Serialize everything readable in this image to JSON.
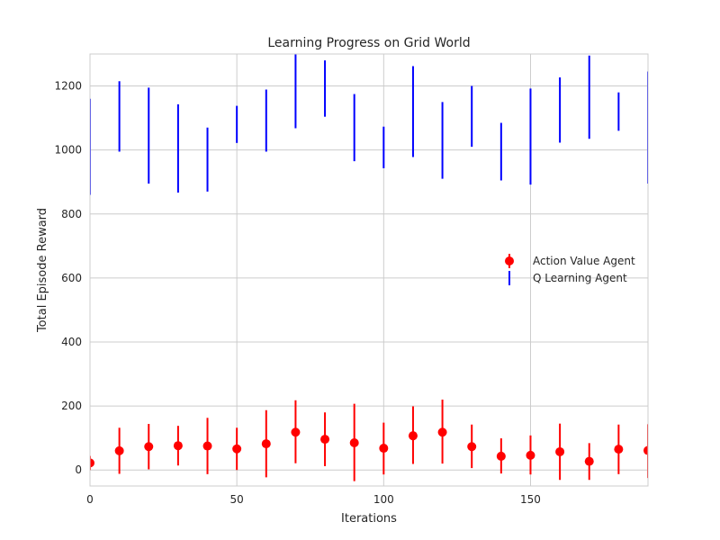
{
  "chart_data": {
    "type": "errorbar",
    "title": "Learning Progress on Grid World",
    "xlabel": "Iterations",
    "ylabel": "Total Episode Reward",
    "xlim": [
      0,
      190
    ],
    "ylim": [
      -50,
      1300
    ],
    "xticks": [
      0,
      50,
      100,
      150
    ],
    "yticks": [
      0,
      200,
      400,
      600,
      800,
      1000,
      1200
    ],
    "grid": true,
    "legend_position": "center-right",
    "series": [
      {
        "name": "Action Value Agent",
        "color": "#ff0000",
        "marker": "circle",
        "x": [
          0,
          10,
          20,
          30,
          40,
          50,
          60,
          70,
          80,
          90,
          100,
          110,
          120,
          130,
          140,
          150,
          160,
          170,
          180,
          190
        ],
        "y": [
          22,
          60,
          73,
          76,
          75,
          66,
          82,
          118,
          96,
          85,
          68,
          107,
          118,
          73,
          43,
          46,
          57,
          27,
          65,
          61
        ],
        "yerr_low": [
          22,
          72,
          71,
          62,
          88,
          66,
          105,
          97,
          84,
          120,
          82,
          88,
          98,
          67,
          54,
          60,
          88,
          58,
          78,
          86
        ],
        "yerr_high": [
          22,
          72,
          71,
          62,
          88,
          66,
          105,
          100,
          84,
          122,
          80,
          92,
          102,
          69,
          56,
          62,
          88,
          57,
          77,
          82
        ]
      },
      {
        "name": "Q Learning Agent",
        "color": "#0000ff",
        "marker": "none",
        "x": [
          0,
          10,
          20,
          30,
          40,
          50,
          60,
          70,
          80,
          90,
          100,
          110,
          120,
          130,
          140,
          150,
          160,
          170,
          180,
          190
        ],
        "y": [
          1010,
          1105,
          1045,
          1005,
          970,
          1080,
          1092,
          1185,
          1192,
          1070,
          1008,
          1120,
          1030,
          1105,
          995,
          1042,
          1125,
          1165,
          1120,
          1070
        ],
        "yerr_low": [
          150,
          110,
          150,
          138,
          100,
          58,
          97,
          117,
          88,
          105,
          65,
          142,
          120,
          95,
          90,
          150,
          102,
          130,
          60,
          175
        ],
        "yerr_high": [
          150,
          110,
          150,
          138,
          100,
          58,
          97,
          117,
          88,
          105,
          65,
          142,
          120,
          95,
          90,
          150,
          102,
          130,
          60,
          175
        ]
      }
    ]
  }
}
